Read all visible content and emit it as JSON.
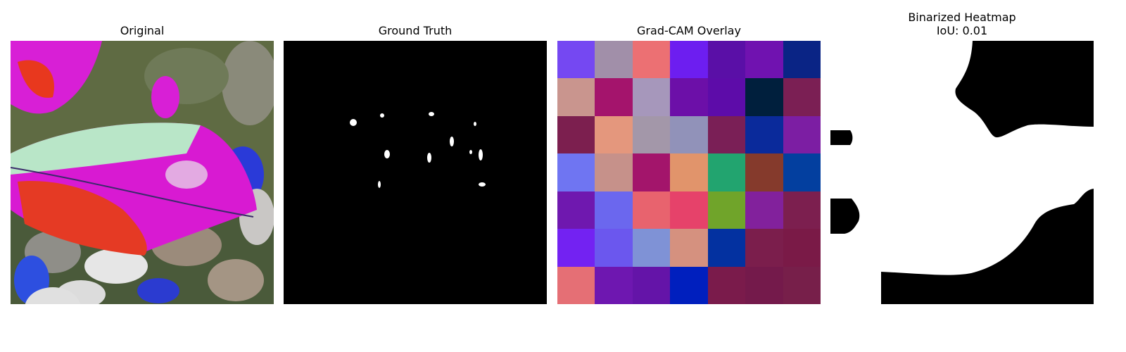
{
  "panels": {
    "original": {
      "title": "Original"
    },
    "ground_truth": {
      "title": "Ground Truth"
    },
    "gradcam": {
      "title": "Grad-CAM Overlay",
      "grid_colors": [
        [
          "#7548f2",
          "#a18fa9",
          "#ec7073",
          "#6d1ef0",
          "#5a0fa7",
          "#7012b0",
          "#0a2485"
        ],
        [
          "#c9958e",
          "#a4146c",
          "#a697bb",
          "#6c0fa8",
          "#5d0ca9",
          "#001f3d",
          "#7b1f54"
        ],
        [
          "#7c1f4f",
          "#e4977d",
          "#a397a9",
          "#9192b9",
          "#7a1f56",
          "#0a2a9b",
          "#7c1ea3"
        ],
        [
          "#6f75f2",
          "#c6918a",
          "#a3156b",
          "#e1946b",
          "#22a46f",
          "#853a2c",
          "#033f9f"
        ],
        [
          "#6f18af",
          "#6b67ee",
          "#e8636e",
          "#e6426a",
          "#70a42a",
          "#82219c",
          "#7c1f4f"
        ],
        [
          "#7322f2",
          "#6b57ee",
          "#7f92d6",
          "#d5917f",
          "#0331a0",
          "#7b1e4c",
          "#7a1a47"
        ],
        [
          "#e56f75",
          "#6e17b0",
          "#6414a8",
          "#001fbe",
          "#7a1b4b",
          "#741a4b",
          "#771f4a"
        ]
      ]
    },
    "binarized": {
      "title": "Binarized Heatmap\nIoU: 0.01"
    }
  }
}
